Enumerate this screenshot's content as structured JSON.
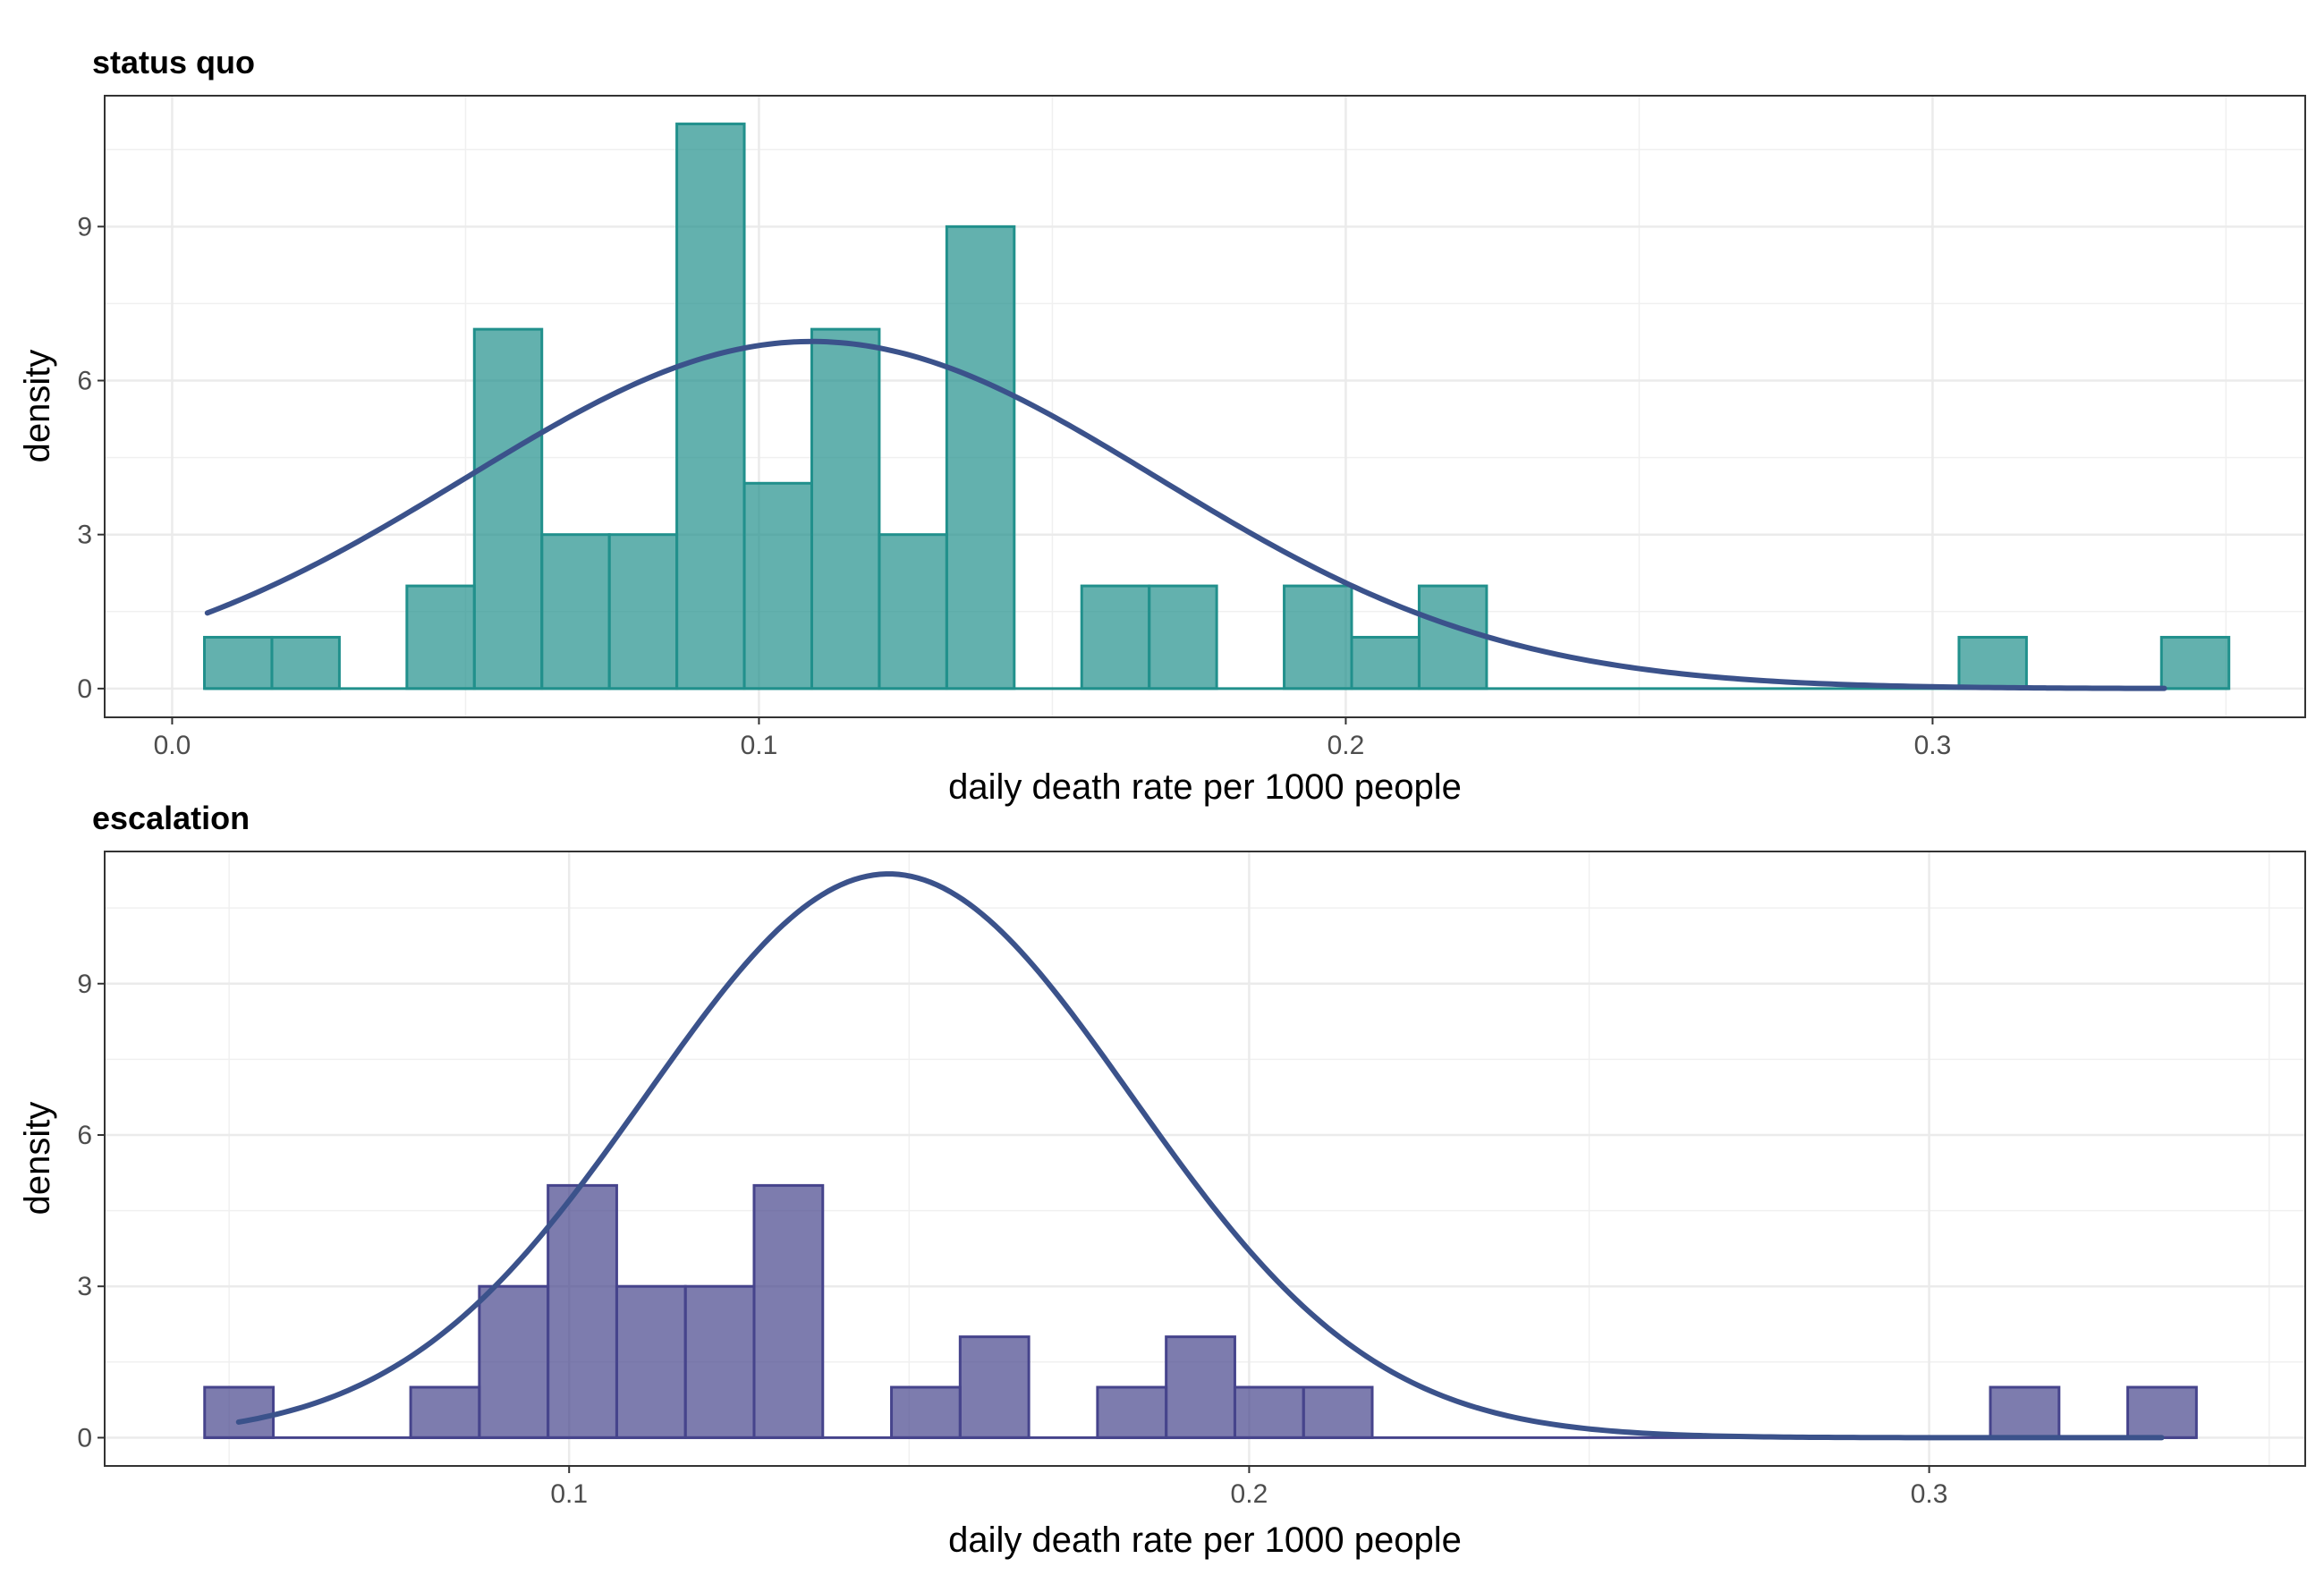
{
  "chart_data": [
    {
      "type": "histogram",
      "title": "status quo",
      "xlabel": "daily death rate per 1000 people",
      "ylabel": "density",
      "xlim": [
        -0.0115,
        0.3635
      ],
      "ylim": [
        -0.56,
        11.55
      ],
      "x_ticks": [
        0.0,
        0.1,
        0.2,
        0.3
      ],
      "x_tick_labels": [
        "0.0",
        "0.1",
        "0.2",
        "0.3"
      ],
      "y_ticks": [
        0,
        3,
        6,
        9
      ],
      "y_tick_labels": [
        "0",
        "3",
        "6",
        "9"
      ],
      "bin_width": 0.0115,
      "bins": [
        {
          "x0": 0.0055,
          "x1": 0.017,
          "value": 1
        },
        {
          "x0": 0.017,
          "x1": 0.0285,
          "value": 1
        },
        {
          "x0": 0.0285,
          "x1": 0.04,
          "value": 0
        },
        {
          "x0": 0.04,
          "x1": 0.0515,
          "value": 2
        },
        {
          "x0": 0.0515,
          "x1": 0.063,
          "value": 7
        },
        {
          "x0": 0.063,
          "x1": 0.0745,
          "value": 3
        },
        {
          "x0": 0.0745,
          "x1": 0.086,
          "value": 3
        },
        {
          "x0": 0.086,
          "x1": 0.0975,
          "value": 11
        },
        {
          "x0": 0.0975,
          "x1": 0.109,
          "value": 4
        },
        {
          "x0": 0.109,
          "x1": 0.1205,
          "value": 7
        },
        {
          "x0": 0.1205,
          "x1": 0.132,
          "value": 3
        },
        {
          "x0": 0.132,
          "x1": 0.1435,
          "value": 9
        },
        {
          "x0": 0.1435,
          "x1": 0.155,
          "value": 0
        },
        {
          "x0": 0.155,
          "x1": 0.1665,
          "value": 2
        },
        {
          "x0": 0.1665,
          "x1": 0.178,
          "value": 2
        },
        {
          "x0": 0.178,
          "x1": 0.1895,
          "value": 0
        },
        {
          "x0": 0.1895,
          "x1": 0.201,
          "value": 2
        },
        {
          "x0": 0.201,
          "x1": 0.2125,
          "value": 1
        },
        {
          "x0": 0.2125,
          "x1": 0.224,
          "value": 2
        },
        {
          "x0": 0.224,
          "x1": 0.2355,
          "value": 0
        },
        {
          "x0": 0.2355,
          "x1": 0.247,
          "value": 0
        },
        {
          "x0": 0.247,
          "x1": 0.2585,
          "value": 0
        },
        {
          "x0": 0.2585,
          "x1": 0.27,
          "value": 0
        },
        {
          "x0": 0.27,
          "x1": 0.2815,
          "value": 0
        },
        {
          "x0": 0.2815,
          "x1": 0.293,
          "value": 0
        },
        {
          "x0": 0.293,
          "x1": 0.3045,
          "value": 0
        },
        {
          "x0": 0.3045,
          "x1": 0.316,
          "value": 1
        },
        {
          "x0": 0.316,
          "x1": 0.3275,
          "value": 0
        },
        {
          "x0": 0.3275,
          "x1": 0.339,
          "value": 0
        },
        {
          "x0": 0.339,
          "x1": 0.3505,
          "value": 1
        }
      ],
      "density_curve": {
        "type": "normal",
        "mean": 0.109,
        "sd": 0.059,
        "x_range": [
          0.006,
          0.3395
        ]
      },
      "colors": {
        "bar_fill": "#21908C",
        "bar_fill_opacity": 0.7,
        "bar_stroke": "#21908C",
        "curve": "#3B528B"
      },
      "grid": true
    },
    {
      "type": "histogram",
      "title": "escalation",
      "xlabel": "daily death rate per 1000 people",
      "ylabel": "density",
      "xlim": [
        0.0317,
        0.3553
      ],
      "ylim": [
        -0.56,
        11.62
      ],
      "x_ticks": [
        0.1,
        0.2,
        0.3
      ],
      "x_tick_labels": [
        "0.1",
        "0.2",
        "0.3"
      ],
      "y_ticks": [
        0,
        3,
        6,
        9
      ],
      "y_tick_labels": [
        "0",
        "3",
        "6",
        "9"
      ],
      "bin_width": 0.0101,
      "bins": [
        {
          "x0": 0.0464,
          "x1": 0.0565,
          "value": 1
        },
        {
          "x0": 0.0565,
          "x1": 0.0666,
          "value": 0
        },
        {
          "x0": 0.0666,
          "x1": 0.0767,
          "value": 0
        },
        {
          "x0": 0.0767,
          "x1": 0.0868,
          "value": 1
        },
        {
          "x0": 0.0868,
          "x1": 0.0969,
          "value": 3
        },
        {
          "x0": 0.0969,
          "x1": 0.107,
          "value": 5
        },
        {
          "x0": 0.107,
          "x1": 0.1171,
          "value": 3
        },
        {
          "x0": 0.1171,
          "x1": 0.1272,
          "value": 3
        },
        {
          "x0": 0.1272,
          "x1": 0.1373,
          "value": 5
        },
        {
          "x0": 0.1373,
          "x1": 0.1474,
          "value": 0
        },
        {
          "x0": 0.1474,
          "x1": 0.1575,
          "value": 1
        },
        {
          "x0": 0.1575,
          "x1": 0.1676,
          "value": 2
        },
        {
          "x0": 0.1676,
          "x1": 0.1777,
          "value": 0
        },
        {
          "x0": 0.1777,
          "x1": 0.1878,
          "value": 1
        },
        {
          "x0": 0.1878,
          "x1": 0.1979,
          "value": 2
        },
        {
          "x0": 0.1979,
          "x1": 0.208,
          "value": 1
        },
        {
          "x0": 0.208,
          "x1": 0.2181,
          "value": 1
        },
        {
          "x0": 0.2181,
          "x1": 0.2282,
          "value": 0
        },
        {
          "x0": 0.2282,
          "x1": 0.2383,
          "value": 0
        },
        {
          "x0": 0.2383,
          "x1": 0.2484,
          "value": 0
        },
        {
          "x0": 0.2484,
          "x1": 0.2585,
          "value": 0
        },
        {
          "x0": 0.2585,
          "x1": 0.2686,
          "value": 0
        },
        {
          "x0": 0.2686,
          "x1": 0.2787,
          "value": 0
        },
        {
          "x0": 0.2787,
          "x1": 0.2888,
          "value": 0
        },
        {
          "x0": 0.2888,
          "x1": 0.2989,
          "value": 0
        },
        {
          "x0": 0.2989,
          "x1": 0.309,
          "value": 0
        },
        {
          "x0": 0.309,
          "x1": 0.3191,
          "value": 1
        },
        {
          "x0": 0.3191,
          "x1": 0.3292,
          "value": 0
        },
        {
          "x0": 0.3292,
          "x1": 0.3393,
          "value": 1
        }
      ],
      "density_curve": {
        "type": "normal",
        "mean": 0.147,
        "sd": 0.0357,
        "x_range": [
          0.0514,
          0.3342
        ]
      },
      "colors": {
        "bar_fill": "#46448C",
        "bar_fill_opacity": 0.7,
        "bar_stroke": "#46448C",
        "curve": "#3B528B"
      },
      "grid": true
    }
  ]
}
